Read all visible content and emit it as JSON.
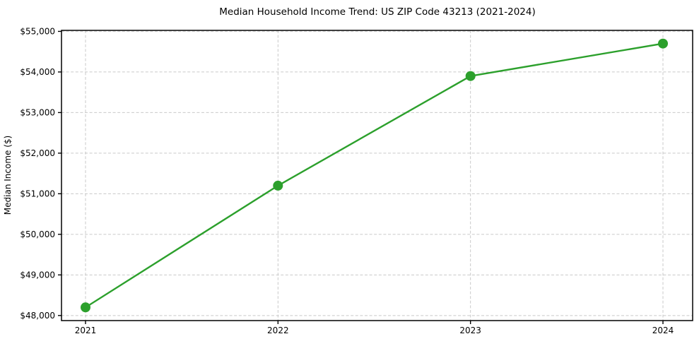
{
  "chart_data": {
    "type": "line",
    "title": "Median Household Income Trend: US ZIP Code 43213 (2021-2024)",
    "xlabel": "",
    "ylabel": "Median Income ($)",
    "categories": [
      "2021",
      "2022",
      "2023",
      "2024"
    ],
    "values": [
      48200,
      51200,
      53900,
      54700
    ],
    "ytick_values": [
      48000,
      49000,
      50000,
      51000,
      52000,
      53000,
      54000,
      55000
    ],
    "ytick_labels": [
      "$48,000",
      "$49,000",
      "$50,000",
      "$51,000",
      "$52,000",
      "$53,000",
      "$54,000",
      "$55,000"
    ],
    "ylim": [
      47875,
      55025
    ],
    "grid": true,
    "grid_style": "dashed",
    "legend": "none",
    "line_color": "#2ca02c",
    "marker": "circle",
    "marker_color": "#2ca02c"
  }
}
